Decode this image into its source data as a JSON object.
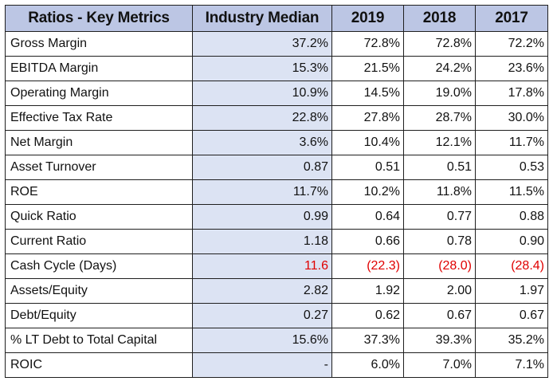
{
  "table": {
    "headers": [
      "Ratios - Key Metrics",
      "Industry Median",
      "2019",
      "2018",
      "2017"
    ],
    "rows": [
      {
        "metric": "Gross Margin",
        "median": "37.2%",
        "y2019": "72.8%",
        "y2018": "72.8%",
        "y2017": "72.2%"
      },
      {
        "metric": "EBITDA Margin",
        "median": "15.3%",
        "y2019": "21.5%",
        "y2018": "24.2%",
        "y2017": "23.6%"
      },
      {
        "metric": "Operating Margin",
        "median": "10.9%",
        "y2019": "14.5%",
        "y2018": "19.0%",
        "y2017": "17.8%"
      },
      {
        "metric": "Effective Tax Rate",
        "median": "22.8%",
        "y2019": "27.8%",
        "y2018": "28.7%",
        "y2017": "30.0%"
      },
      {
        "metric": "Net Margin",
        "median": "3.6%",
        "y2019": "10.4%",
        "y2018": "12.1%",
        "y2017": "11.7%"
      },
      {
        "metric": "Asset Turnover",
        "median": "0.87",
        "y2019": "0.51",
        "y2018": "0.51",
        "y2017": "0.53"
      },
      {
        "metric": "ROE",
        "median": "11.7%",
        "y2019": "10.2%",
        "y2018": "11.8%",
        "y2017": "11.5%"
      },
      {
        "metric": "Quick Ratio",
        "median": "0.99",
        "y2019": "0.64",
        "y2018": "0.77",
        "y2017": "0.88"
      },
      {
        "metric": "Current Ratio",
        "median": "1.18",
        "y2019": "0.66",
        "y2018": "0.78",
        "y2017": "0.90"
      },
      {
        "metric": "Cash Cycle (Days)",
        "median": "11.6",
        "y2019": "(22.3)",
        "y2018": "(28.0)",
        "y2017": "(28.4)"
      },
      {
        "metric": "Assets/Equity",
        "median": "2.82",
        "y2019": "1.92",
        "y2018": "2.00",
        "y2017": "1.97"
      },
      {
        "metric": "Debt/Equity",
        "median": "0.27",
        "y2019": "0.62",
        "y2018": "0.67",
        "y2017": "0.67"
      },
      {
        "metric": "% LT Debt to Total Capital",
        "median": "15.6%",
        "y2019": "37.3%",
        "y2018": "39.3%",
        "y2017": "35.2%"
      },
      {
        "metric": "ROIC",
        "median": "-",
        "y2019": "6.0%",
        "y2018": "7.0%",
        "y2017": "7.1%"
      }
    ]
  },
  "colors": {
    "header_fill": "#bcc6e4",
    "median_fill": "#dce3f3",
    "negative_text": "#e00000",
    "highlight_text": "#e00000"
  }
}
